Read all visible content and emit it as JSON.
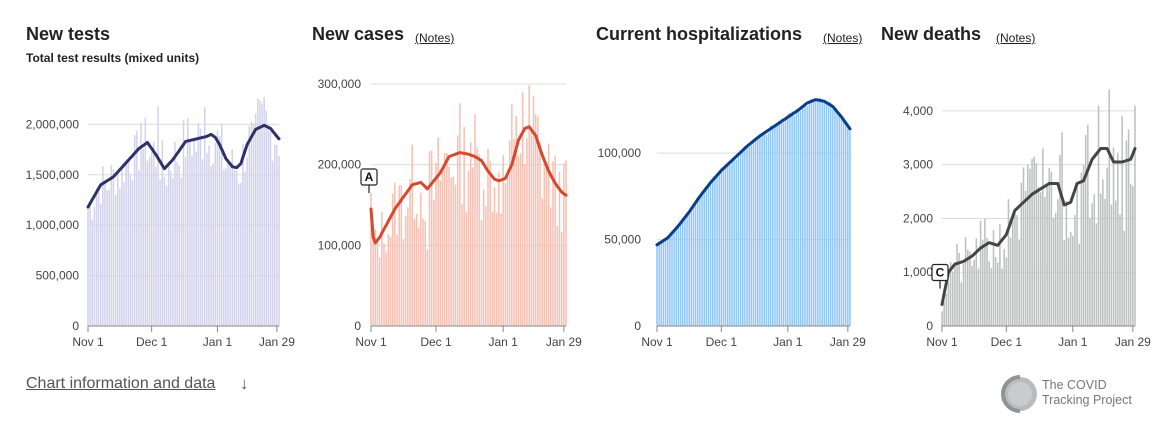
{
  "footer": {
    "link_label": "Chart information and data",
    "arrow": "↓",
    "logo_line1": "The COVID",
    "logo_line2": "Tracking Project"
  },
  "chart_data": [
    {
      "type": "bar",
      "title": "New tests",
      "subtitle": "Total test results (mixed units)",
      "notes_label": "",
      "bar_color": "#d4d1ec",
      "line_color": "#2e3268",
      "x_ticks": [
        "Nov 1",
        "Dec 1",
        "Jan 1",
        "Jan 29"
      ],
      "y_ticks": [
        "0",
        "500,000",
        "1,000,000",
        "1,500,000",
        "2,000,000"
      ],
      "y_tick_values": [
        0,
        500000,
        1000000,
        1500000,
        2000000
      ],
      "ylim": [
        0,
        2400000
      ],
      "grid": true,
      "annotation": "",
      "anchors": [
        [
          0,
          1180000
        ],
        [
          6,
          1400000
        ],
        [
          12,
          1480000
        ],
        [
          18,
          1620000
        ],
        [
          24,
          1760000
        ],
        [
          28,
          1820000
        ],
        [
          32,
          1700000
        ],
        [
          36,
          1560000
        ],
        [
          40,
          1650000
        ],
        [
          46,
          1830000
        ],
        [
          52,
          1860000
        ],
        [
          56,
          1880000
        ],
        [
          58,
          1900000
        ],
        [
          60,
          1870000
        ],
        [
          62,
          1800000
        ],
        [
          65,
          1660000
        ],
        [
          68,
          1580000
        ],
        [
          70,
          1570000
        ],
        [
          72,
          1610000
        ],
        [
          75,
          1800000
        ],
        [
          79,
          1950000
        ],
        [
          83,
          1990000
        ],
        [
          86,
          1960000
        ],
        [
          89,
          1880000
        ],
        [
          92,
          1810000
        ],
        [
          94,
          1790000
        ]
      ],
      "noise_amp": 0.16,
      "spike_days": [
        [
          25,
          2020000
        ],
        [
          33,
          2180000
        ],
        [
          55,
          2170000
        ],
        [
          76,
          1980000
        ],
        [
          77,
          2030000
        ],
        [
          83,
          2270000
        ]
      ],
      "seed": 7
    },
    {
      "type": "bar",
      "title": "New cases",
      "subtitle": "",
      "notes_label": "(Notes)",
      "bar_color": "#f7c0b3",
      "line_color": "#d44a31",
      "x_ticks": [
        "Nov 1",
        "Dec 1",
        "Jan 1",
        "Jan 29"
      ],
      "y_ticks": [
        "0",
        "100,000",
        "200,000",
        "300,000"
      ],
      "y_tick_values": [
        0,
        100000,
        200000,
        300000
      ],
      "ylim": [
        0,
        300000
      ],
      "grid": true,
      "annotation": "A",
      "anchors": [
        [
          0,
          145000
        ],
        [
          1,
          110000
        ],
        [
          2,
          103000
        ],
        [
          4,
          110000
        ],
        [
          7,
          125000
        ],
        [
          11,
          145000
        ],
        [
          15,
          160000
        ],
        [
          19,
          175000
        ],
        [
          23,
          178000
        ],
        [
          26,
          170000
        ],
        [
          29,
          180000
        ],
        [
          32,
          190000
        ],
        [
          36,
          210000
        ],
        [
          41,
          215000
        ],
        [
          45,
          213000
        ],
        [
          48,
          210000
        ],
        [
          51,
          205000
        ],
        [
          54,
          192000
        ],
        [
          57,
          182000
        ],
        [
          59,
          180000
        ],
        [
          62,
          183000
        ],
        [
          65,
          200000
        ],
        [
          68,
          230000
        ],
        [
          71,
          245000
        ],
        [
          73,
          247000
        ],
        [
          76,
          236000
        ],
        [
          79,
          212000
        ],
        [
          82,
          192000
        ],
        [
          85,
          177000
        ],
        [
          88,
          166000
        ],
        [
          91,
          160000
        ],
        [
          94,
          152000
        ]
      ],
      "noise_amp": 0.3,
      "spike_days": [
        [
          26,
          95000
        ],
        [
          46,
          228000
        ],
        [
          59,
          190000
        ],
        [
          65,
          275000
        ],
        [
          70,
          290000
        ]
      ],
      "seed": 13
    },
    {
      "type": "bar",
      "title": "Current hospitalizations",
      "subtitle": "",
      "notes_label": "(Notes)",
      "bar_color": "#90c7f6",
      "line_color": "#0a3e87",
      "x_ticks": [
        "Nov 1",
        "Dec 1",
        "Jan 1",
        "Jan 29"
      ],
      "y_ticks": [
        "0",
        "50,000",
        "100,000"
      ],
      "y_tick_values": [
        0,
        50000,
        100000
      ],
      "ylim": [
        0,
        140000
      ],
      "grid": true,
      "annotation": "",
      "anchors": [
        [
          0,
          47000
        ],
        [
          5,
          51000
        ],
        [
          10,
          58000
        ],
        [
          15,
          66000
        ],
        [
          20,
          75000
        ],
        [
          25,
          83000
        ],
        [
          30,
          90000
        ],
        [
          36,
          97000
        ],
        [
          42,
          104000
        ],
        [
          48,
          110000
        ],
        [
          54,
          115000
        ],
        [
          60,
          120000
        ],
        [
          66,
          125000
        ],
        [
          70,
          129000
        ],
        [
          74,
          131000
        ],
        [
          78,
          130000
        ],
        [
          82,
          127000
        ],
        [
          86,
          121000
        ],
        [
          90,
          114000
        ],
        [
          94,
          107000
        ]
      ],
      "noise_amp": 0.015,
      "spike_days": [],
      "seed": 3
    },
    {
      "type": "bar",
      "title": "New deaths",
      "subtitle": "",
      "notes_label": "(Notes)",
      "bar_color": "#bdc0bf",
      "line_color": "#454545",
      "x_ticks": [
        "Nov 1",
        "Dec 1",
        "Jan 1",
        "Jan 29"
      ],
      "y_ticks": [
        "0",
        "1,000",
        "2,000",
        "3,000",
        "4,000"
      ],
      "y_tick_values": [
        0,
        1000,
        2000,
        3000,
        4000
      ],
      "ylim": [
        0,
        4500
      ],
      "grid": true,
      "annotation": "C",
      "anchors": [
        [
          0,
          400
        ],
        [
          3,
          1000
        ],
        [
          6,
          1150
        ],
        [
          10,
          1200
        ],
        [
          14,
          1300
        ],
        [
          18,
          1450
        ],
        [
          22,
          1550
        ],
        [
          26,
          1500
        ],
        [
          30,
          1700
        ],
        [
          34,
          2150
        ],
        [
          38,
          2300
        ],
        [
          42,
          2450
        ],
        [
          46,
          2550
        ],
        [
          50,
          2650
        ],
        [
          54,
          2650
        ],
        [
          57,
          2250
        ],
        [
          60,
          2300
        ],
        [
          63,
          2650
        ],
        [
          66,
          2700
        ],
        [
          70,
          3100
        ],
        [
          74,
          3300
        ],
        [
          77,
          3300
        ],
        [
          80,
          3050
        ],
        [
          84,
          3050
        ],
        [
          88,
          3100
        ],
        [
          90,
          3300
        ],
        [
          94,
          3250
        ]
      ],
      "noise_amp": 0.35,
      "spike_days": [
        [
          33,
          2100
        ],
        [
          43,
          3150
        ],
        [
          47,
          3300
        ],
        [
          56,
          3600
        ],
        [
          73,
          4100
        ],
        [
          78,
          4400
        ],
        [
          84,
          3900
        ],
        [
          90,
          4100
        ]
      ],
      "seed": 21
    }
  ]
}
